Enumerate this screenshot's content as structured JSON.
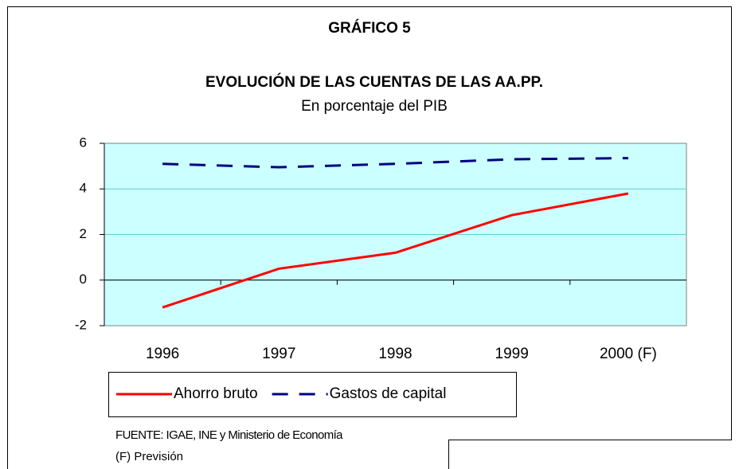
{
  "chart_data": {
    "type": "line",
    "title": "GRÁFICO 5",
    "subtitle": "EVOLUCIÓN DE LAS CUENTAS DE LAS AA.PP.",
    "y_label": "En porcentaje del PIB",
    "categories": [
      "1996",
      "1997",
      "1998",
      "1999",
      "2000 (F)"
    ],
    "series": [
      {
        "name": "Ahorro bruto",
        "color": "#ff0000",
        "dash": "solid",
        "values": [
          -1.2,
          0.5,
          1.2,
          2.85,
          3.8
        ]
      },
      {
        "name": "Gastos de capital",
        "color": "#000080",
        "dash": "dashed",
        "values": [
          5.1,
          4.95,
          5.1,
          5.3,
          5.35
        ]
      }
    ],
    "ylim": [
      -2,
      6
    ],
    "yticks": [
      -2,
      0,
      2,
      4,
      6
    ],
    "grid": true,
    "plot_background": "#ccffff",
    "source": "FUENTE: IGAE, INE y Ministerio de Economía",
    "note": "(F) Previsión"
  }
}
